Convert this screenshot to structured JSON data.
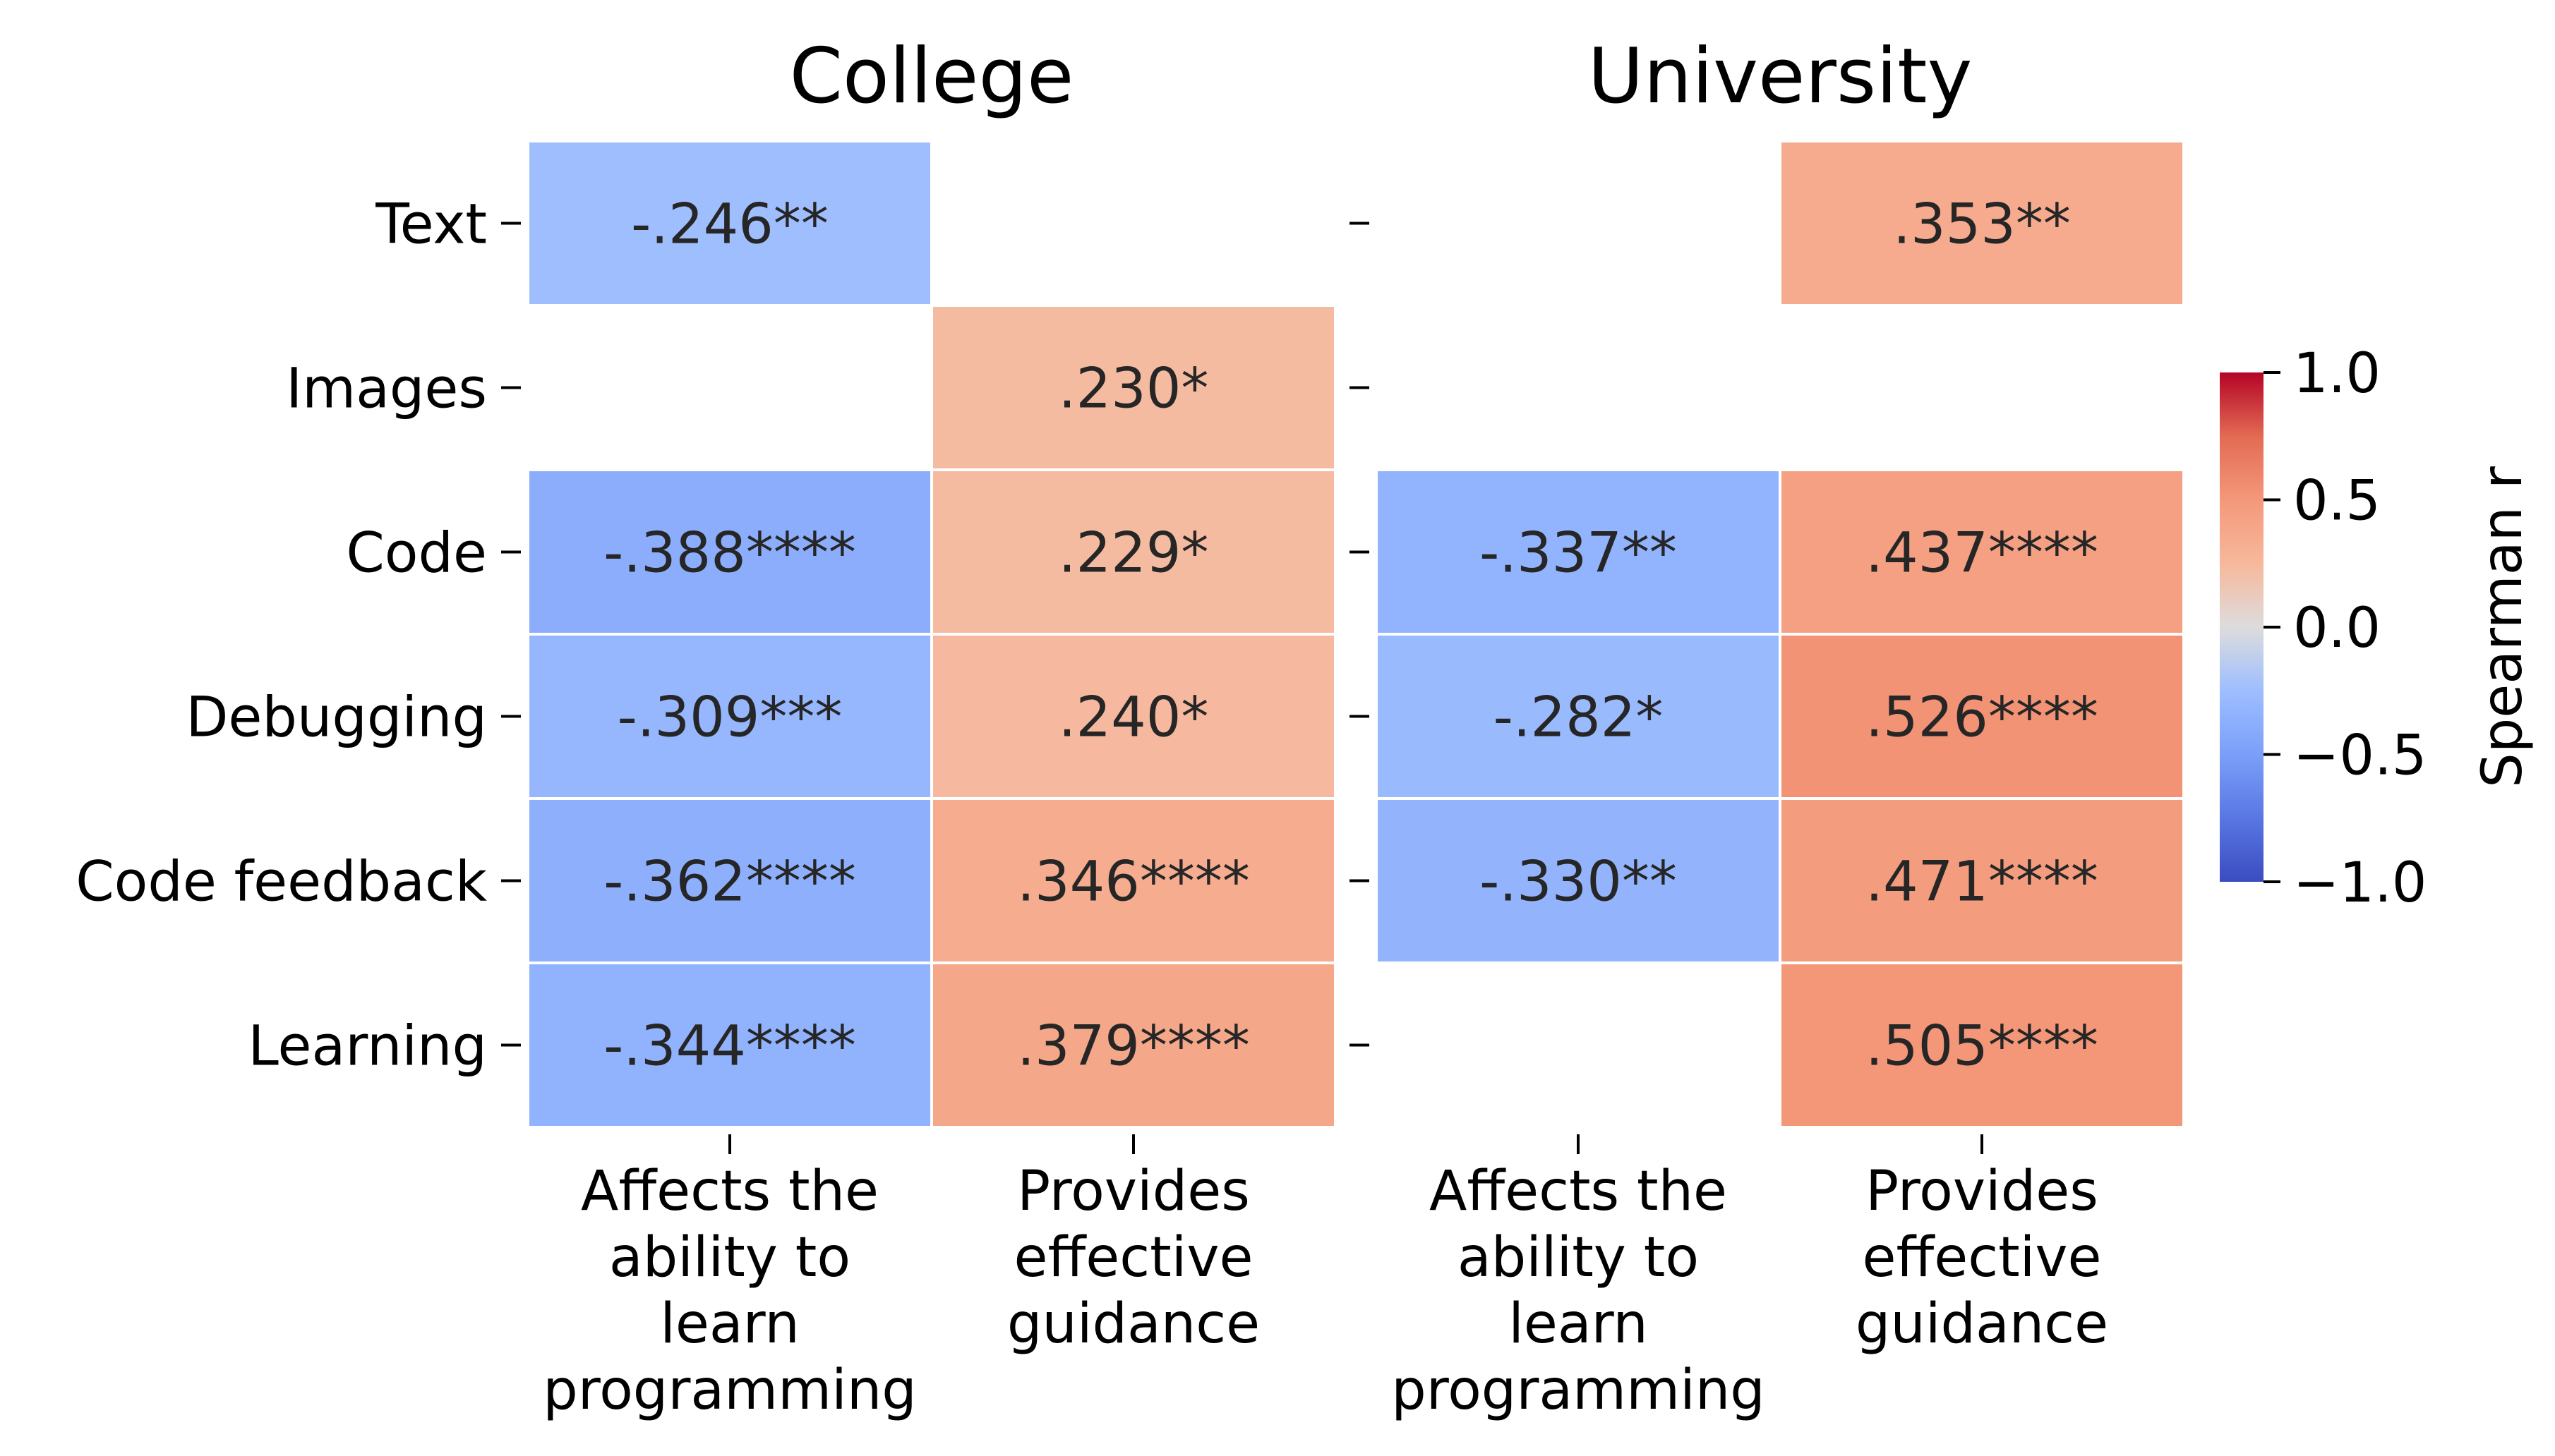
{
  "chart_data": {
    "type": "heatmap",
    "rows": [
      "Text",
      "Images",
      "Code",
      "Debugging",
      "Code feedback",
      "Learning"
    ],
    "panels": [
      {
        "title": "College",
        "columns": [
          [
            "Affects the",
            "ability to",
            "learn",
            "programming"
          ],
          [
            "Provides",
            "effective",
            "guidance"
          ]
        ],
        "cells": [
          [
            {
              "value": -0.246,
              "label": "-.246**"
            },
            null
          ],
          [
            null,
            {
              "value": 0.23,
              "label": ".230*"
            }
          ],
          [
            {
              "value": -0.388,
              "label": "-.388****"
            },
            {
              "value": 0.229,
              "label": ".229*"
            }
          ],
          [
            {
              "value": -0.309,
              "label": "-.309***"
            },
            {
              "value": 0.24,
              "label": ".240*"
            }
          ],
          [
            {
              "value": -0.362,
              "label": "-.362****"
            },
            {
              "value": 0.346,
              "label": ".346****"
            }
          ],
          [
            {
              "value": -0.344,
              "label": "-.344****"
            },
            {
              "value": 0.379,
              "label": ".379****"
            }
          ]
        ]
      },
      {
        "title": "University",
        "columns": [
          [
            "Affects the",
            "ability to",
            "learn",
            "programming"
          ],
          [
            "Provides",
            "effective",
            "guidance"
          ]
        ],
        "cells": [
          [
            null,
            {
              "value": 0.353,
              "label": ".353**"
            }
          ],
          [
            null,
            null
          ],
          [
            {
              "value": -0.337,
              "label": "-.337**"
            },
            {
              "value": 0.437,
              "label": ".437****"
            }
          ],
          [
            {
              "value": -0.282,
              "label": "-.282*"
            },
            {
              "value": 0.526,
              "label": ".526****"
            }
          ],
          [
            {
              "value": -0.33,
              "label": "-.330**"
            },
            {
              "value": 0.471,
              "label": ".471****"
            }
          ],
          [
            null,
            {
              "value": 0.505,
              "label": ".505****"
            }
          ]
        ]
      }
    ],
    "colorbar": {
      "label": "Spearman r",
      "range": [
        -1.0,
        1.0
      ],
      "ticks": [
        1.0,
        0.5,
        0.0,
        -0.5,
        -1.0
      ],
      "tick_labels": [
        "1.0",
        "0.5",
        "0.0",
        "−0.5",
        "−1.0"
      ],
      "colormap": "coolwarm"
    }
  }
}
